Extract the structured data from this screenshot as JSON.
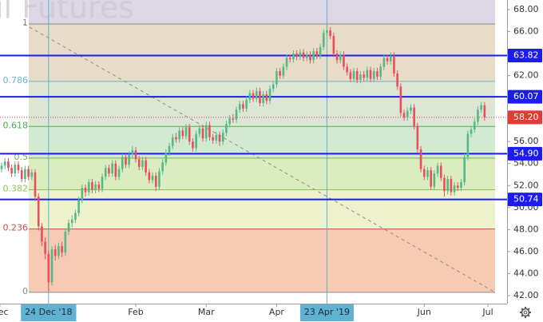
{
  "chart_data": {
    "type": "candlestick",
    "watermark": "il Futures",
    "up_color": "#53b987",
    "down_color": "#eb4d5c",
    "open": [
      53.5,
      53.8,
      54.2,
      53.6,
      53.1,
      53.9,
      53.4,
      52.6,
      53.5,
      52.8,
      53.2,
      51.0,
      48.3,
      46.9,
      45.8,
      43.2,
      46.2,
      45.6,
      46.5,
      45.9,
      47.8,
      48.6,
      48.9,
      49.5,
      50.7,
      51.8,
      51.4,
      52.3,
      51.6,
      52.1,
      51.7,
      52.8,
      53.6,
      53.1,
      54.0,
      52.8,
      53.5,
      54.6,
      53.9,
      54.8,
      55.2,
      54.4,
      53.7,
      54.3,
      53.2,
      52.5,
      52.9,
      51.9,
      53.3,
      54.1,
      55.0,
      55.6,
      56.4,
      56.2,
      57.0,
      56.5,
      57.3,
      56.0,
      55.4,
      56.7,
      57.2,
      56.3,
      57.5,
      56.4,
      56.1,
      56.6,
      56.0,
      56.8,
      57.6,
      58.1,
      58.0,
      58.9,
      59.4,
      59.0,
      59.8,
      60.4,
      59.9,
      60.6,
      59.5,
      60.3,
      59.7,
      60.8,
      61.2,
      62.4,
      62.0,
      62.8,
      63.6,
      63.5,
      64.0,
      63.7,
      64.1,
      63.6,
      63.9,
      63.4,
      64.2,
      63.8,
      64.6,
      65.9,
      66.1,
      65.6,
      64.0,
      63.4,
      63.9,
      62.8,
      62.3,
      61.7,
      62.4,
      61.6,
      62.1,
      61.8,
      62.5,
      61.7,
      62.4,
      61.9,
      62.8,
      63.6,
      63.3,
      63.8,
      62.2,
      61.0,
      58.6,
      58.2,
      58.8,
      59.1,
      57.4,
      55.3,
      53.5,
      52.8,
      53.4,
      51.9,
      53.1,
      53.8,
      52.7,
      51.5,
      52.6,
      51.4,
      52.0,
      51.8,
      52.3,
      54.6,
      56.7,
      57.1,
      57.8,
      58.9,
      59.3
    ],
    "high": [
      54.1,
      54.5,
      54.5,
      53.9,
      54.2,
      54.2,
      53.7,
      53.8,
      53.8,
      53.5,
      53.5,
      51.3,
      48.6,
      47.3,
      46.1,
      46.5,
      46.6,
      46.8,
      46.9,
      48.1,
      48.9,
      49.3,
      49.8,
      51.0,
      52.1,
      52.1,
      52.6,
      52.6,
      52.4,
      52.4,
      53.1,
      53.9,
      53.9,
      54.3,
      54.3,
      53.8,
      54.9,
      54.9,
      55.1,
      55.6,
      55.5,
      54.7,
      54.6,
      54.6,
      53.5,
      53.2,
      53.2,
      53.6,
      54.4,
      55.3,
      55.9,
      56.7,
      56.8,
      57.3,
      57.3,
      57.6,
      57.6,
      56.3,
      57.0,
      57.5,
      57.5,
      57.8,
      57.8,
      56.7,
      56.9,
      56.9,
      57.1,
      57.9,
      58.4,
      58.5,
      59.2,
      59.7,
      59.7,
      60.1,
      60.7,
      60.7,
      60.9,
      60.9,
      60.6,
      60.6,
      61.1,
      61.5,
      62.7,
      62.7,
      63.1,
      63.9,
      63.9,
      64.3,
      64.3,
      64.4,
      64.4,
      64.2,
      64.2,
      64.5,
      64.5,
      64.9,
      66.2,
      66.6,
      66.4,
      65.9,
      64.3,
      64.2,
      64.2,
      63.1,
      62.6,
      62.7,
      62.7,
      62.4,
      62.4,
      62.8,
      62.8,
      62.7,
      62.7,
      63.1,
      63.9,
      63.9,
      64.1,
      64.1,
      62.5,
      61.3,
      58.9,
      59.1,
      59.4,
      59.4,
      57.7,
      55.6,
      53.8,
      53.7,
      53.7,
      53.4,
      54.1,
      54.1,
      53.0,
      52.9,
      52.9,
      52.3,
      52.3,
      52.6,
      54.9,
      57.0,
      57.4,
      58.1,
      59.2,
      59.6,
      59.6
    ],
    "low": [
      53.2,
      53.5,
      53.3,
      52.8,
      52.8,
      53.1,
      52.3,
      52.3,
      52.5,
      52.5,
      50.6,
      47.9,
      46.5,
      45.3,
      42.4,
      42.9,
      45.2,
      45.3,
      45.5,
      45.6,
      47.5,
      48.2,
      48.6,
      49.2,
      50.4,
      51.0,
      51.1,
      51.3,
      51.3,
      51.4,
      51.4,
      52.5,
      52.8,
      52.8,
      52.5,
      52.5,
      53.2,
      53.6,
      53.6,
      54.5,
      54.1,
      53.4,
      53.4,
      52.9,
      52.2,
      52.2,
      51.5,
      51.6,
      53.0,
      53.8,
      54.7,
      55.3,
      55.9,
      55.9,
      56.2,
      56.2,
      55.7,
      55.1,
      55.1,
      56.4,
      56.0,
      56.0,
      56.1,
      55.8,
      55.8,
      55.6,
      55.7,
      56.5,
      57.3,
      57.7,
      57.7,
      58.6,
      58.7,
      58.7,
      59.5,
      59.6,
      59.6,
      59.2,
      59.2,
      59.4,
      59.4,
      60.5,
      60.9,
      61.7,
      61.7,
      62.5,
      63.2,
      63.2,
      63.4,
      63.4,
      63.3,
      63.3,
      63.1,
      63.1,
      63.5,
      63.5,
      64.3,
      65.6,
      65.3,
      63.7,
      63.1,
      63.1,
      62.5,
      62.0,
      61.4,
      61.4,
      61.3,
      61.3,
      61.5,
      61.5,
      61.4,
      61.4,
      61.6,
      61.6,
      62.5,
      63.0,
      63.0,
      61.9,
      60.7,
      58.3,
      57.9,
      57.9,
      58.5,
      57.1,
      55.0,
      53.2,
      52.5,
      52.5,
      51.6,
      51.6,
      52.8,
      52.4,
      51.0,
      51.2,
      51.1,
      51.1,
      51.5,
      51.5,
      52.0,
      54.3,
      56.4,
      56.8,
      57.5,
      58.6,
      57.9
    ],
    "close": [
      53.8,
      54.2,
      53.6,
      53.1,
      53.9,
      53.4,
      52.6,
      53.5,
      52.8,
      53.2,
      51.0,
      48.3,
      46.9,
      45.8,
      43.2,
      46.2,
      45.6,
      46.5,
      45.9,
      47.8,
      48.6,
      48.9,
      49.5,
      50.7,
      51.8,
      51.4,
      52.3,
      51.6,
      52.1,
      51.7,
      52.8,
      53.6,
      53.1,
      54.0,
      52.8,
      53.5,
      54.6,
      53.9,
      54.8,
      55.2,
      54.4,
      53.7,
      54.3,
      53.2,
      52.5,
      52.9,
      51.9,
      53.3,
      54.1,
      55.0,
      55.6,
      56.4,
      56.2,
      57.0,
      56.5,
      57.3,
      56.0,
      55.4,
      56.7,
      57.2,
      56.3,
      57.5,
      56.4,
      56.1,
      56.6,
      56.0,
      56.8,
      57.6,
      58.1,
      58.0,
      58.9,
      59.4,
      59.0,
      59.8,
      60.4,
      59.9,
      60.6,
      59.5,
      60.3,
      59.7,
      60.8,
      61.2,
      62.4,
      62.0,
      62.8,
      63.6,
      63.5,
      64.0,
      63.7,
      64.1,
      63.6,
      63.9,
      63.4,
      64.2,
      63.8,
      64.6,
      65.9,
      66.1,
      65.6,
      64.0,
      63.4,
      63.9,
      62.8,
      62.3,
      61.7,
      62.4,
      61.6,
      62.1,
      61.8,
      62.5,
      61.7,
      62.4,
      61.9,
      62.8,
      63.6,
      63.3,
      63.8,
      62.2,
      61.0,
      58.6,
      58.2,
      58.8,
      59.1,
      57.4,
      55.3,
      53.5,
      52.8,
      53.4,
      51.9,
      53.1,
      53.8,
      52.7,
      51.5,
      52.6,
      51.4,
      52.0,
      51.8,
      52.3,
      54.6,
      56.7,
      57.1,
      57.8,
      58.9,
      59.3,
      58.2
    ],
    "ylim": [
      41.27,
      68.87
    ],
    "yticks": [
      {
        "value": 42,
        "label": "42.00"
      },
      {
        "value": 44,
        "label": "44.00"
      },
      {
        "value": 46,
        "label": "46.00"
      },
      {
        "value": 48,
        "label": "48.00"
      },
      {
        "value": 50,
        "label": "50.00"
      },
      {
        "value": 52,
        "label": "52.00"
      },
      {
        "value": 54,
        "label": "54.00"
      },
      {
        "value": 56,
        "label": "56.00"
      },
      {
        "value": 58,
        "label": "58.00"
      },
      {
        "value": 60,
        "label": "60.00"
      },
      {
        "value": 62,
        "label": "62.00"
      },
      {
        "value": 64,
        "label": "64.00"
      },
      {
        "value": 66,
        "label": "66.00"
      },
      {
        "value": 68,
        "label": "68.00"
      }
    ],
    "xlim": [
      -0.48,
      150.7
    ],
    "xticks": [
      {
        "value": -0.5,
        "label": "Dec"
      },
      {
        "value": 14,
        "label": "24 Dec '18"
      },
      {
        "value": 40,
        "label": "Feb"
      },
      {
        "value": 61,
        "label": "Mar"
      },
      {
        "value": 82,
        "label": "Apr"
      },
      {
        "value": 97,
        "label": "23 Apr '19"
      },
      {
        "value": 126,
        "label": "Jun"
      },
      {
        "value": 145,
        "label": "Jul"
      }
    ],
    "crosshair_x": [
      14,
      97
    ],
    "crosshair_color": "#5fb2d2",
    "levels": [
      {
        "value": 63.82,
        "label": "63.82"
      },
      {
        "value": 60.07,
        "label": "60.07"
      },
      {
        "value": 54.9,
        "label": "54.90"
      },
      {
        "value": 50.74,
        "label": "50.74"
      }
    ],
    "level_color": "#1c1cf0",
    "last_price": {
      "value": 58.2,
      "label": "58.20",
      "color": "#e53935"
    },
    "fib": {
      "low": 42.3,
      "high": 66.69,
      "above_fill": "#dcd6e5",
      "levels": [
        {
          "ratio": 1,
          "color": "#8a8a8a",
          "fill": "#e6dcc7"
        },
        {
          "ratio": 0.786,
          "color": "#6fb3c2",
          "fill": "#dde6d4"
        },
        {
          "ratio": 0.618,
          "color": "#4caf50",
          "fill": "#d3ead2"
        },
        {
          "ratio": 0.5,
          "color": "#7cb342",
          "fill": "#dcecc1"
        },
        {
          "ratio": 0.382,
          "color": "#8bc34a",
          "fill": "#edf1cc"
        },
        {
          "ratio": 0.236,
          "color": "#c0504d",
          "fill": "#f6cab3"
        },
        {
          "ratio": 0,
          "color": "#8a8a8a"
        }
      ]
    }
  }
}
